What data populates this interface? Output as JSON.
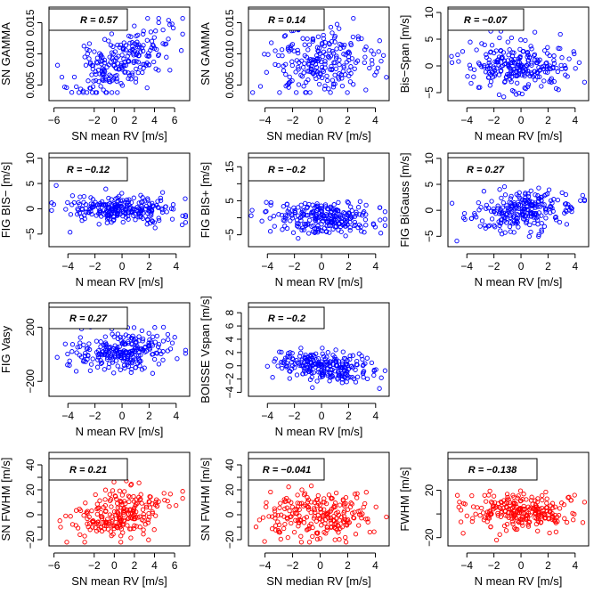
{
  "figure": {
    "colors": {
      "blue": "#0000ff",
      "red": "#ff0000"
    },
    "marker": "open-circle"
  },
  "chart_data": [
    {
      "type": "scatter",
      "r_label": "R = 0.57",
      "xlabel": "SN mean RV [m/s]",
      "ylabel": "SN GAMMA",
      "xlim": [
        -6.5,
        7.5
      ],
      "ylim": [
        0.0025,
        0.0175
      ],
      "xticks": [
        -6,
        -2,
        0,
        2,
        4,
        6
      ],
      "yticks": [
        0.005,
        0.01,
        0.015
      ],
      "ytick_labels": [
        "0.005",
        "0.010",
        "0.015"
      ],
      "color": "blue",
      "correlation": 0.57,
      "x_center": 0.5,
      "x_spread": 2.3,
      "x_min": -6,
      "x_max": 6.8,
      "y_center": 0.0085,
      "y_spread": 0.0028,
      "y_min": 0.0038,
      "y_max": 0.0157,
      "n_points": 230,
      "seed": 11
    },
    {
      "type": "scatter",
      "r_label": "R = 0.14",
      "xlabel": "SN median RV [m/s]",
      "ylabel": "SN GAMMA",
      "xlim": [
        -5.2,
        5.0
      ],
      "ylim": [
        0.0025,
        0.0175
      ],
      "xticks": [
        -4,
        -2,
        0,
        2,
        4
      ],
      "yticks": [
        0.005,
        0.01,
        0.015
      ],
      "ytick_labels": [
        "0.005",
        "0.010",
        "0.015"
      ],
      "color": "blue",
      "correlation": 0.14,
      "x_center": 0,
      "x_spread": 1.9,
      "x_min": -5,
      "x_max": 4.8,
      "y_center": 0.0085,
      "y_spread": 0.0028,
      "y_min": 0.0038,
      "y_max": 0.0157,
      "n_points": 230,
      "seed": 23
    },
    {
      "type": "scatter",
      "r_label": "R = −0.07",
      "xlabel": "N mean RV [m/s]",
      "ylabel": "Bis−Span [m/s]",
      "xlim": [
        -5.4,
        5.0
      ],
      "ylim": [
        -6.5,
        11
      ],
      "xticks": [
        -4,
        -2,
        0,
        2,
        4
      ],
      "yticks": [
        -5,
        0,
        5,
        10
      ],
      "ytick_labels": [
        "−5",
        "0",
        "5",
        "10"
      ],
      "color": "blue",
      "correlation": -0.07,
      "x_center": 0,
      "x_spread": 1.9,
      "x_min": -5.2,
      "x_max": 4.7,
      "y_center": 0,
      "y_spread": 2.2,
      "y_min": -5.8,
      "y_max": 6.5,
      "n_points": 250,
      "seed": 37
    },
    {
      "type": "scatter",
      "r_label": "R = −0.12",
      "xlabel": "N mean RV [m/s]",
      "ylabel": "FIG BIS− [m/s]",
      "xlim": [
        -5.4,
        5.0
      ],
      "ylim": [
        -7.5,
        11
      ],
      "xticks": [
        -4,
        -2,
        0,
        2,
        4
      ],
      "yticks": [
        -5,
        0,
        5,
        10
      ],
      "ytick_labels": [
        "−5",
        "0",
        "5",
        "10"
      ],
      "color": "blue",
      "correlation": -0.12,
      "x_center": 0,
      "x_spread": 1.9,
      "x_min": -5.2,
      "x_max": 4.7,
      "y_center": 0,
      "y_spread": 1.5,
      "y_min": -6.5,
      "y_max": 4.8,
      "n_points": 250,
      "seed": 41
    },
    {
      "type": "scatter",
      "r_label": "R = −0.2",
      "xlabel": "N mean RV [m/s]",
      "ylabel": "FIG BIS+ [m/s]",
      "xlim": [
        -5.4,
        5.0
      ],
      "ylim": [
        -8.5,
        19
      ],
      "xticks": [
        -4,
        -2,
        0,
        2,
        4
      ],
      "yticks": [
        -5,
        0,
        5,
        10,
        15
      ],
      "ytick_labels": [
        "−5",
        "",
        "5",
        "",
        "15"
      ],
      "color": "blue",
      "correlation": -0.2,
      "x_center": 0,
      "x_spread": 1.9,
      "x_min": -5.2,
      "x_max": 4.7,
      "y_center": 0,
      "y_spread": 2.3,
      "y_min": -6.5,
      "y_max": 8.5,
      "n_points": 250,
      "seed": 53
    },
    {
      "type": "scatter",
      "r_label": "R = 0.27",
      "xlabel": "N mean RV [m/s]",
      "ylabel": "FIG BiGauss [m/s]",
      "xlim": [
        -5.4,
        5.0
      ],
      "ylim": [
        -7,
        11
      ],
      "xticks": [
        -4,
        -2,
        0,
        2,
        4
      ],
      "yticks": [
        -5,
        0,
        5,
        10
      ],
      "ytick_labels": [
        "−5",
        "0",
        "5",
        "10"
      ],
      "color": "blue",
      "correlation": 0.27,
      "x_center": 0,
      "x_spread": 1.9,
      "x_min": -5.2,
      "x_max": 4.7,
      "y_center": 0,
      "y_spread": 2.0,
      "y_min": -6.2,
      "y_max": 5.5,
      "n_points": 250,
      "seed": 67
    },
    {
      "type": "scatter",
      "r_label": "R = 0.27",
      "xlabel": "N mean RV [m/s]",
      "ylabel": "FIG Vasy",
      "xlim": [
        -5.4,
        5.0
      ],
      "ylim": [
        -310,
        380
      ],
      "xticks": [
        -4,
        -2,
        0,
        2,
        4
      ],
      "yticks": [
        -200,
        200
      ],
      "ytick_labels": [
        "−200",
        "200"
      ],
      "color": "blue",
      "correlation": 0.27,
      "x_center": 0,
      "x_spread": 1.9,
      "x_min": -5.2,
      "x_max": 4.7,
      "y_center": 20,
      "y_spread": 70,
      "y_min": -270,
      "y_max": 200,
      "n_points": 250,
      "seed": 79
    },
    {
      "type": "scatter",
      "r_label": "R = −0.2",
      "xlabel": "N mean RV [m/s]",
      "ylabel": "BOISSE Vspan [m/s]",
      "xlim": [
        -5.4,
        5.0
      ],
      "ylim": [
        -4.6,
        9.5
      ],
      "xticks": [
        -4,
        -2,
        0,
        2,
        4
      ],
      "yticks": [
        -4,
        -2,
        0,
        2,
        4,
        6,
        8
      ],
      "ytick_labels": [
        "−4",
        "−2",
        "0",
        "2",
        "4",
        "6",
        "8"
      ],
      "color": "blue",
      "correlation": -0.2,
      "x_center": 0,
      "x_spread": 1.9,
      "x_min": -5.2,
      "x_max": 4.7,
      "y_center": 0,
      "y_spread": 1.2,
      "y_min": -4,
      "y_max": 4.2,
      "n_points": 250,
      "seed": 83
    },
    {
      "type": "scatter",
      "r_label": "R = 0.21",
      "xlabel": "SN mean RV [m/s]",
      "ylabel": "SN FWHM [m/s]",
      "xlim": [
        -6.5,
        7.5
      ],
      "ylim": [
        -25,
        50
      ],
      "xticks": [
        -6,
        -2,
        0,
        2,
        4,
        6
      ],
      "yticks": [
        -20,
        0,
        20,
        40
      ],
      "ytick_labels": [
        "−20",
        "0",
        "20",
        "40"
      ],
      "ytick_minor": [
        -10,
        10,
        30
      ],
      "color": "red",
      "correlation": 0.21,
      "x_center": 0.5,
      "x_spread": 2.3,
      "x_min": -6,
      "x_max": 6.8,
      "y_center": 0,
      "y_spread": 10,
      "y_min": -22,
      "y_max": 28,
      "n_points": 230,
      "seed": 97
    },
    {
      "type": "scatter",
      "r_label": "R = −0.041",
      "xlabel": "SN median RV [m/s]",
      "ylabel": "SN FWHM [m/s]",
      "xlim": [
        -5.2,
        5.0
      ],
      "ylim": [
        -25,
        50
      ],
      "xticks": [
        -4,
        -2,
        0,
        2,
        4
      ],
      "yticks": [
        -20,
        0,
        20,
        40
      ],
      "ytick_labels": [
        "−20",
        "0",
        "20",
        "40"
      ],
      "ytick_minor": [
        -10,
        10,
        30
      ],
      "color": "red",
      "correlation": -0.041,
      "x_center": 0,
      "x_spread": 1.9,
      "x_min": -5,
      "x_max": 4.8,
      "y_center": 0,
      "y_spread": 10,
      "y_min": -22,
      "y_max": 28,
      "n_points": 230,
      "seed": 101
    },
    {
      "type": "scatter",
      "r_label": "R = −0.138",
      "xlabel": "N mean RV [m/s]",
      "ylabel": "FWHM [m/s]",
      "xlim": [
        -5.4,
        5.0
      ],
      "ylim": [
        -27,
        52
      ],
      "xticks": [
        -4,
        -2,
        0,
        2,
        4
      ],
      "yticks": [
        -20,
        20
      ],
      "ytick_labels": [
        "−20",
        "20"
      ],
      "ytick_minor": [
        0
      ],
      "color": "red",
      "correlation": -0.138,
      "x_center": 0,
      "x_spread": 1.9,
      "x_min": -5.2,
      "x_max": 4.7,
      "y_center": 2,
      "y_spread": 8,
      "y_min": -22,
      "y_max": 30,
      "n_points": 250,
      "seed": 113
    }
  ]
}
